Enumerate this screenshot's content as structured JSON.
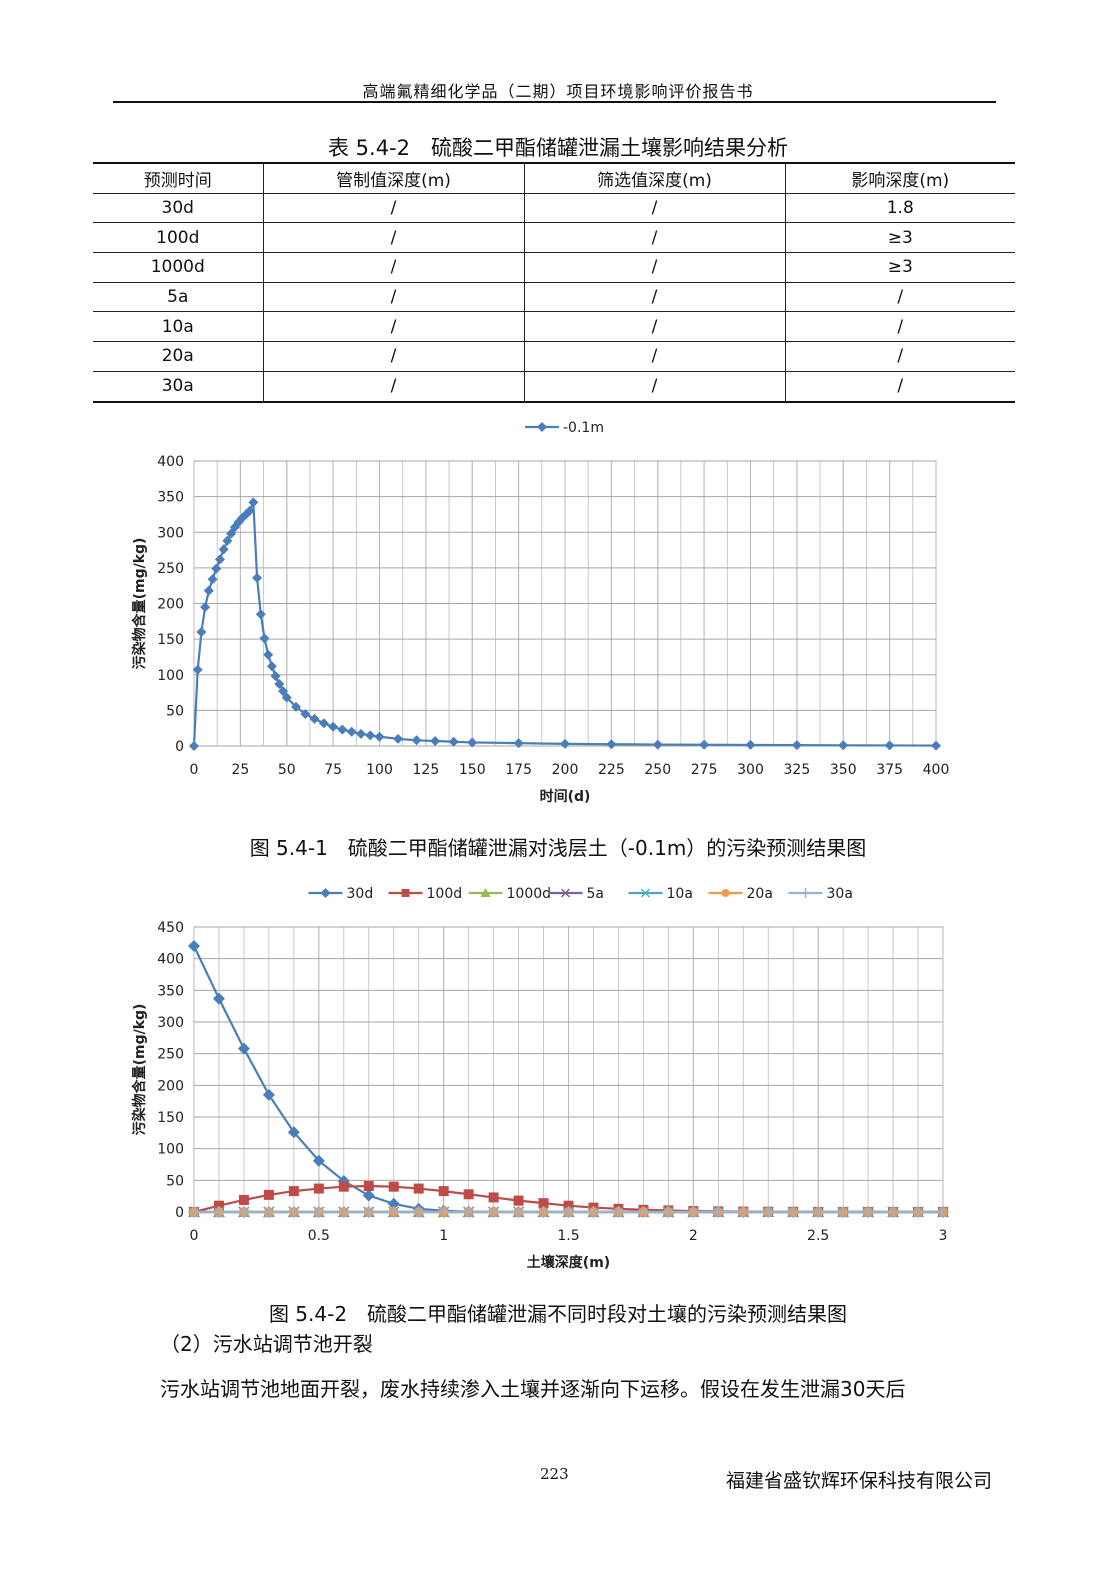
{
  "header": {
    "title": "高端氟精细化学品（二期）项目环境影响评价报告书"
  },
  "table": {
    "caption": "表 5.4-2　硫酸二甲酯储罐泄漏土壤影响结果分析",
    "columns": [
      "预测时间",
      "管制值深度(m)",
      "筛选值深度(m)",
      "影响深度(m)"
    ],
    "rows": [
      [
        "30d",
        "/",
        "/",
        "1.8"
      ],
      [
        "100d",
        "/",
        "/",
        "≥3"
      ],
      [
        "1000d",
        "/",
        "/",
        "≥3"
      ],
      [
        "5a",
        "/",
        "/",
        "/"
      ],
      [
        "10a",
        "/",
        "/",
        "/"
      ],
      [
        "20a",
        "/",
        "/",
        "/"
      ],
      [
        "30a",
        "/",
        "/",
        "/"
      ]
    ]
  },
  "chart_data": [
    {
      "type": "line",
      "title": "",
      "xlabel": "时间(d)",
      "ylabel": "污染物含量(mg/kg)",
      "xlim": [
        0,
        400
      ],
      "ylim": [
        0,
        400
      ],
      "xticks": [
        "0",
        "25",
        "50",
        "75",
        "100",
        "125",
        "150",
        "175",
        "200",
        "225",
        "250",
        "275",
        "300",
        "325",
        "350",
        "375",
        "400"
      ],
      "yticks": [
        "0",
        "50",
        "100",
        "150",
        "200",
        "250",
        "300",
        "350",
        "400"
      ],
      "grid": true,
      "legend": "top",
      "series": [
        {
          "name": "-0.1m",
          "color": "#4a7ebb",
          "marker": "diamond",
          "x": [
            0,
            2,
            4,
            6,
            8,
            10,
            12,
            14,
            16,
            18,
            20,
            22,
            24,
            26,
            28,
            30,
            32,
            34,
            36,
            38,
            40,
            42,
            44,
            46,
            48,
            50,
            55,
            60,
            65,
            70,
            75,
            80,
            85,
            90,
            95,
            100,
            110,
            120,
            130,
            140,
            150,
            175,
            200,
            225,
            250,
            275,
            300,
            325,
            350,
            375,
            400
          ],
          "y": [
            0,
            107,
            160,
            195,
            218,
            234,
            249,
            262,
            276,
            288,
            298,
            307,
            314,
            320,
            325,
            330,
            342,
            236,
            185,
            151,
            128,
            112,
            98,
            87,
            77,
            68,
            55,
            45,
            38,
            32,
            27,
            23,
            20,
            17,
            15,
            13,
            10,
            8,
            7,
            6,
            5,
            4,
            3,
            2.5,
            2,
            1.8,
            1.5,
            1.3,
            1,
            0.8,
            0.6
          ]
        }
      ]
    },
    {
      "type": "line",
      "title": "",
      "xlabel": "土壤深度(m)",
      "ylabel": "污染物含量(mg/kg)",
      "xlim": [
        0,
        3
      ],
      "ylim": [
        0,
        450
      ],
      "xticks": [
        "0",
        "0.5",
        "1",
        "1.5",
        "2",
        "2.5",
        "3"
      ],
      "yticks": [
        "0",
        "50",
        "100",
        "150",
        "200",
        "250",
        "300",
        "350",
        "400",
        "450"
      ],
      "grid": true,
      "legend": "top",
      "x": [
        0,
        0.1,
        0.2,
        0.3,
        0.4,
        0.5,
        0.6,
        0.7,
        0.8,
        0.9,
        1.0,
        1.1,
        1.2,
        1.3,
        1.4,
        1.5,
        1.6,
        1.7,
        1.8,
        1.9,
        2.0,
        2.1,
        2.2,
        2.3,
        2.4,
        2.5,
        2.6,
        2.7,
        2.8,
        2.9,
        3.0
      ],
      "series": [
        {
          "name": "30d",
          "color": "#4a7ebb",
          "marker": "diamond",
          "values": [
            420,
            337,
            258,
            185,
            126,
            81,
            49,
            26,
            13,
            5,
            2,
            0.5,
            0.1,
            0,
            0,
            0,
            0,
            0,
            0,
            0,
            0,
            0,
            0,
            0,
            0,
            0,
            0,
            0,
            0,
            0,
            0
          ]
        },
        {
          "name": "100d",
          "color": "#be4b48",
          "marker": "square",
          "values": [
            0,
            10,
            19,
            27,
            33,
            37,
            40,
            41,
            40,
            37,
            33,
            28,
            23,
            18,
            14,
            10,
            7,
            5,
            3.5,
            2.5,
            1.5,
            1,
            0.6,
            0.4,
            0.2,
            0.1,
            0,
            0,
            0,
            0,
            0
          ]
        },
        {
          "name": "1000d",
          "color": "#98b954",
          "marker": "triangle",
          "values": [
            0,
            0,
            0,
            0,
            0,
            0,
            0,
            0,
            0,
            0,
            0,
            0,
            0,
            0,
            0,
            0,
            0,
            0,
            0,
            0,
            0,
            0,
            0,
            0,
            0,
            0,
            0,
            0,
            0,
            0,
            0
          ]
        },
        {
          "name": "5a",
          "color": "#7d60a0",
          "marker": "x",
          "values": [
            0,
            0,
            0,
            0,
            0,
            0,
            0,
            0,
            0,
            0,
            0,
            0,
            0,
            0,
            0,
            0,
            0,
            0,
            0,
            0,
            0,
            0,
            0,
            0,
            0,
            0,
            0,
            0,
            0,
            0,
            0
          ]
        },
        {
          "name": "10a",
          "color": "#46aac5",
          "marker": "star",
          "values": [
            0,
            0,
            0,
            0,
            0,
            0,
            0,
            0,
            0,
            0,
            0,
            0,
            0,
            0,
            0,
            0,
            0,
            0,
            0,
            0,
            0,
            0,
            0,
            0,
            0,
            0,
            0,
            0,
            0,
            0,
            0
          ]
        },
        {
          "name": "20a",
          "color": "#f79646",
          "marker": "circle",
          "values": [
            0,
            0,
            0,
            0,
            0,
            0,
            0,
            0,
            0,
            0,
            0,
            0,
            0,
            0,
            0,
            0,
            0,
            0,
            0,
            0,
            0,
            0,
            0,
            0,
            0,
            0,
            0,
            0,
            0,
            0,
            0
          ]
        },
        {
          "name": "30a",
          "color": "#95b3d7",
          "marker": "plus",
          "values": [
            0,
            0,
            0,
            0,
            0,
            0,
            0,
            0,
            0,
            0,
            0,
            0,
            0,
            0,
            0,
            0,
            0,
            0,
            0,
            0,
            0,
            0,
            0,
            0,
            0,
            0,
            0,
            0,
            0,
            0,
            0
          ]
        }
      ]
    }
  ],
  "figures": [
    {
      "caption": "图 5.4-1　硫酸二甲酯储罐泄漏对浅层土（-0.1m）的污染预测结果图"
    },
    {
      "caption": "图 5.4-2　硫酸二甲酯储罐泄漏不同时段对土壤的污染预测结果图"
    }
  ],
  "body": {
    "heading": "（2）污水站调节池开裂",
    "paragraph": "污水站调节池地面开裂，废水持续渗入土壤并逐渐向下运移。假设在发生泄漏30天后"
  },
  "footer": {
    "page_number": "223",
    "company": "福建省盛钦辉环保科技有限公司"
  }
}
